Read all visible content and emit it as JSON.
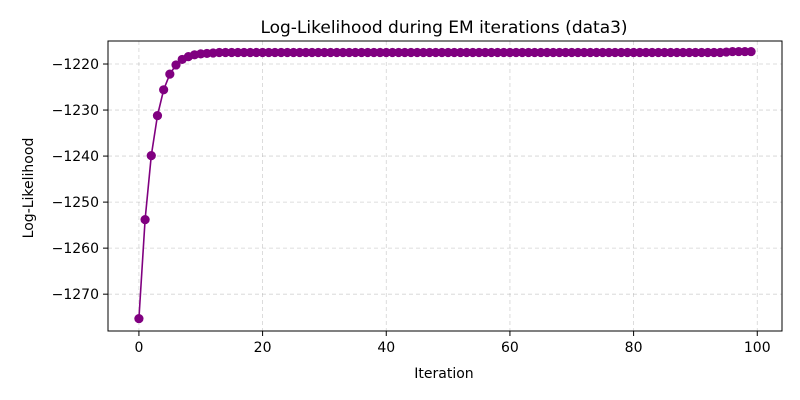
{
  "chart_data": {
    "type": "line",
    "title": "Log-Likelihood during EM iterations (data3)",
    "xlabel": "Iteration",
    "ylabel": "Log-Likelihood",
    "xlim": [
      -5,
      104
    ],
    "ylim": [
      -1278,
      -1215
    ],
    "xticks": [
      0,
      20,
      40,
      60,
      80,
      100
    ],
    "yticks": [
      -1270,
      -1260,
      -1250,
      -1240,
      -1230,
      -1220
    ],
    "xtick_labels": [
      "0",
      "20",
      "40",
      "60",
      "80",
      "100"
    ],
    "ytick_labels": [
      "−1270",
      "−1260",
      "−1250",
      "−1240",
      "−1230",
      "−1220"
    ],
    "grid": true,
    "line_color": "#800080",
    "marker": "circle",
    "series": [
      {
        "x": [
          0,
          1,
          2,
          3,
          4,
          5,
          6,
          7,
          8,
          9,
          10,
          11,
          12,
          13,
          14,
          15,
          16,
          17,
          18,
          19,
          20,
          21,
          22,
          23,
          24,
          25,
          26,
          27,
          28,
          29,
          30,
          31,
          32,
          33,
          34,
          35,
          36,
          37,
          38,
          39,
          40,
          41,
          42,
          43,
          44,
          45,
          46,
          47,
          48,
          49,
          50,
          51,
          52,
          53,
          54,
          55,
          56,
          57,
          58,
          59,
          60,
          61,
          62,
          63,
          64,
          65,
          66,
          67,
          68,
          69,
          70,
          71,
          72,
          73,
          74,
          75,
          76,
          77,
          78,
          79,
          80,
          81,
          82,
          83,
          84,
          85,
          86,
          87,
          88,
          89,
          90,
          91,
          92,
          93,
          94,
          95,
          96,
          97,
          98,
          99
        ],
        "y": [
          -1275.3,
          -1253.8,
          -1239.9,
          -1231.2,
          -1225.6,
          -1222.2,
          -1220.2,
          -1219.0,
          -1218.4,
          -1218.0,
          -1217.8,
          -1217.7,
          -1217.6,
          -1217.5,
          -1217.5,
          -1217.5,
          -1217.5,
          -1217.5,
          -1217.5,
          -1217.5,
          -1217.5,
          -1217.5,
          -1217.5,
          -1217.5,
          -1217.5,
          -1217.5,
          -1217.5,
          -1217.5,
          -1217.5,
          -1217.5,
          -1217.5,
          -1217.5,
          -1217.5,
          -1217.5,
          -1217.5,
          -1217.5,
          -1217.5,
          -1217.5,
          -1217.5,
          -1217.5,
          -1217.5,
          -1217.5,
          -1217.5,
          -1217.5,
          -1217.5,
          -1217.5,
          -1217.5,
          -1217.5,
          -1217.5,
          -1217.5,
          -1217.5,
          -1217.5,
          -1217.5,
          -1217.5,
          -1217.5,
          -1217.5,
          -1217.5,
          -1217.5,
          -1217.5,
          -1217.5,
          -1217.5,
          -1217.5,
          -1217.5,
          -1217.5,
          -1217.5,
          -1217.5,
          -1217.5,
          -1217.5,
          -1217.5,
          -1217.5,
          -1217.5,
          -1217.5,
          -1217.5,
          -1217.5,
          -1217.5,
          -1217.5,
          -1217.5,
          -1217.5,
          -1217.5,
          -1217.5,
          -1217.5,
          -1217.5,
          -1217.5,
          -1217.5,
          -1217.5,
          -1217.5,
          -1217.5,
          -1217.5,
          -1217.5,
          -1217.5,
          -1217.5,
          -1217.5,
          -1217.5,
          -1217.5,
          -1217.5,
          -1217.4,
          -1217.3,
          -1217.3,
          -1217.3,
          -1217.3
        ]
      }
    ]
  }
}
